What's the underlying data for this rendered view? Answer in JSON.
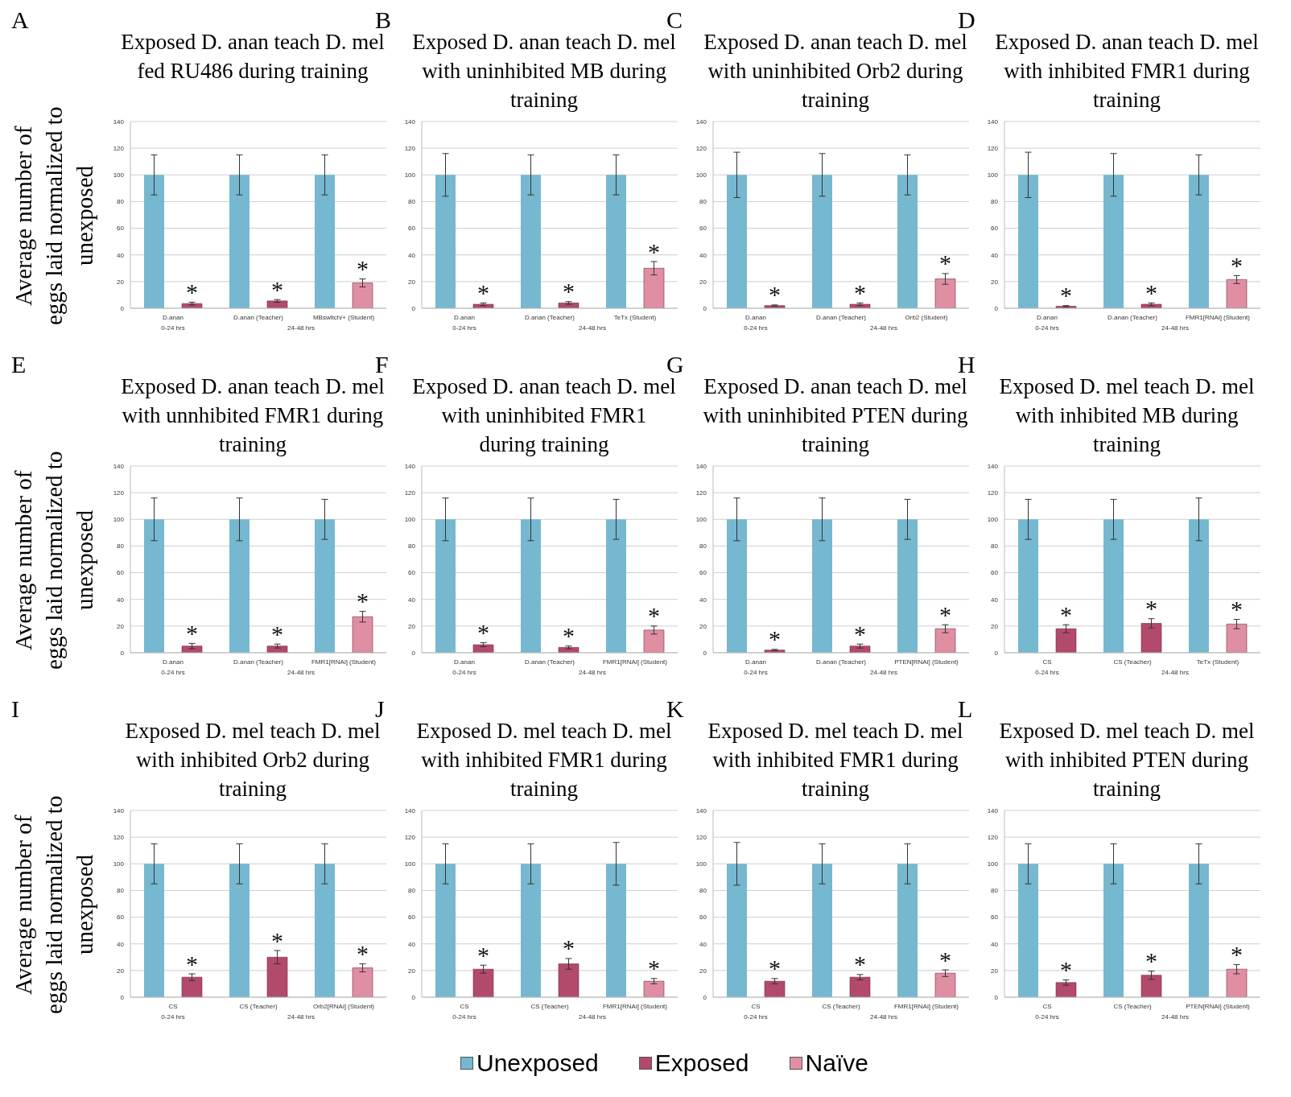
{
  "chart_data": [
    {
      "type": "bar",
      "title": "Exposed D. anan teach D. mel fed RU486 during training",
      "ylabel": "Average number of eggs laid normalized to unexposed",
      "categories": [
        "D.anan",
        "D.anan (Teacher)",
        "MBswitch/+ (Student)"
      ],
      "series": [
        {
          "color": "#75b8cf",
          "values": [
            100,
            100,
            100
          ],
          "errors": [
            15,
            15,
            15
          ]
        },
        {
          "color": "#b24a6b",
          "values": [
            3.5,
            5.5,
            null
          ],
          "errors": [
            1,
            1,
            null
          ]
        },
        {
          "color": "#e08fa3",
          "values": [
            null,
            null,
            19
          ],
          "errors": [
            null,
            null,
            3
          ]
        }
      ],
      "ylim": [
        0,
        140
      ],
      "yticks": [
        0,
        20,
        40,
        60,
        80,
        100,
        120,
        140
      ],
      "grid": "y",
      "annotations": [
        "A",
        "0-24 hrs",
        "24-48 hrs",
        "*",
        "*",
        "*"
      ]
    },
    {
      "type": "bar",
      "title": "Exposed D. anan teach D. mel with uninhibited MB during training",
      "categories": [
        "D.anan",
        "D.anan (Teacher)",
        "TeTx (Student)"
      ],
      "series": [
        {
          "color": "#75b8cf",
          "values": [
            100,
            100,
            100
          ],
          "errors": [
            16,
            15,
            15
          ]
        },
        {
          "color": "#b24a6b",
          "values": [
            3,
            4,
            null
          ],
          "errors": [
            1,
            1,
            null
          ]
        },
        {
          "color": "#e08fa3",
          "values": [
            null,
            null,
            30
          ],
          "errors": [
            null,
            null,
            5
          ]
        }
      ],
      "ylim": [
        0,
        140
      ],
      "yticks": [
        0,
        20,
        40,
        60,
        80,
        100,
        120,
        140
      ],
      "grid": "y",
      "annotations": [
        "B",
        "0-24 hrs",
        "24-48 hrs",
        "*",
        "*",
        "*"
      ]
    },
    {
      "type": "bar",
      "title": "Exposed D. anan teach D. mel with uninhibited Orb2 during training",
      "categories": [
        "D.anan",
        "D.anan (Teacher)",
        "Orb2 (Student)"
      ],
      "series": [
        {
          "color": "#75b8cf",
          "values": [
            100,
            100,
            100
          ],
          "errors": [
            17,
            16,
            15
          ]
        },
        {
          "color": "#b24a6b",
          "values": [
            2,
            3,
            null
          ],
          "errors": [
            0.5,
            1,
            null
          ]
        },
        {
          "color": "#e08fa3",
          "values": [
            null,
            null,
            22
          ],
          "errors": [
            null,
            null,
            4
          ]
        }
      ],
      "ylim": [
        0,
        140
      ],
      "yticks": [
        0,
        20,
        40,
        60,
        80,
        100,
        120,
        140
      ],
      "grid": "y",
      "annotations": [
        "C",
        "0-24 hrs",
        "24-48 hrs",
        "*",
        "*",
        "*"
      ]
    },
    {
      "type": "bar",
      "title": "Exposed D. anan teach D. mel with inhibited FMR1 during training",
      "categories": [
        "D.anan",
        "D.anan (Teacher)",
        "FMR1[RNAi] (Student)"
      ],
      "series": [
        {
          "color": "#75b8cf",
          "values": [
            100,
            100,
            100
          ],
          "errors": [
            17,
            16,
            15
          ]
        },
        {
          "color": "#b24a6b",
          "values": [
            1.5,
            3,
            null
          ],
          "errors": [
            0.5,
            1,
            null
          ]
        },
        {
          "color": "#e08fa3",
          "values": [
            null,
            null,
            21.5
          ],
          "errors": [
            null,
            null,
            3
          ]
        }
      ],
      "ylim": [
        0,
        140
      ],
      "yticks": [
        0,
        20,
        40,
        60,
        80,
        100,
        120,
        140
      ],
      "grid": "y",
      "annotations": [
        "D",
        "0-24 hrs",
        "24-48 hrs",
        "*",
        "*",
        "*"
      ]
    },
    {
      "type": "bar",
      "title": "Exposed D. anan teach D. mel with unnhibited FMR1 during training",
      "ylabel": "Average number of eggs laid normalized to unexposed",
      "categories": [
        "D.anan",
        "D.anan (Teacher)",
        "FMR1[RNAi] (Student)"
      ],
      "series": [
        {
          "color": "#75b8cf",
          "values": [
            100,
            100,
            100
          ],
          "errors": [
            16,
            16,
            15
          ]
        },
        {
          "color": "#b24a6b",
          "values": [
            5,
            5,
            null
          ],
          "errors": [
            2,
            1.5,
            null
          ]
        },
        {
          "color": "#e08fa3",
          "values": [
            null,
            null,
            27
          ],
          "errors": [
            null,
            null,
            4
          ]
        }
      ],
      "ylim": [
        0,
        140
      ],
      "yticks": [
        0,
        20,
        40,
        60,
        80,
        100,
        120,
        140
      ],
      "grid": "y",
      "annotations": [
        "E",
        "0-24 hrs",
        "24-48 hrs",
        "*",
        "*",
        "*"
      ]
    },
    {
      "type": "bar",
      "title": "Exposed D. anan teach D. mel with uninhibited FMR1 during training",
      "categories": [
        "D.anan",
        "D.anan (Teacher)",
        "FMR1[RNAi] (Student)"
      ],
      "series": [
        {
          "color": "#75b8cf",
          "values": [
            100,
            100,
            100
          ],
          "errors": [
            16,
            16,
            15
          ]
        },
        {
          "color": "#b24a6b",
          "values": [
            6,
            4,
            null
          ],
          "errors": [
            1.5,
            1,
            null
          ]
        },
        {
          "color": "#e08fa3",
          "values": [
            null,
            null,
            17
          ],
          "errors": [
            null,
            null,
            3
          ]
        }
      ],
      "ylim": [
        0,
        140
      ],
      "yticks": [
        0,
        20,
        40,
        60,
        80,
        100,
        120,
        140
      ],
      "grid": "y",
      "annotations": [
        "F",
        "0-24 hrs",
        "24-48 hrs",
        "*",
        "*",
        "*"
      ]
    },
    {
      "type": "bar",
      "title": "Exposed D. anan teach D. mel with uninhibited PTEN during training",
      "categories": [
        "D.anan",
        "D.anan (Teacher)",
        "PTEN[RNAi] (Student)"
      ],
      "series": [
        {
          "color": "#75b8cf",
          "values": [
            100,
            100,
            100
          ],
          "errors": [
            16,
            16,
            15
          ]
        },
        {
          "color": "#b24a6b",
          "values": [
            2,
            5,
            null
          ],
          "errors": [
            0.5,
            1.5,
            null
          ]
        },
        {
          "color": "#e08fa3",
          "values": [
            null,
            null,
            18
          ],
          "errors": [
            null,
            null,
            3
          ]
        }
      ],
      "ylim": [
        0,
        140
      ],
      "yticks": [
        0,
        20,
        40,
        60,
        80,
        100,
        120,
        140
      ],
      "grid": "y",
      "annotations": [
        "G",
        "0-24 hrs",
        "24-48 hrs",
        "*",
        "*",
        "*"
      ]
    },
    {
      "type": "bar",
      "title": "Exposed D. mel teach D. mel with inhibited MB during training",
      "categories": [
        "CS",
        "CS (Teacher)",
        "TeTx (Student)"
      ],
      "series": [
        {
          "color": "#75b8cf",
          "values": [
            100,
            100,
            100
          ],
          "errors": [
            15,
            15,
            16
          ]
        },
        {
          "color": "#b24a6b",
          "values": [
            18,
            22,
            null
          ],
          "errors": [
            3,
            3.5,
            null
          ]
        },
        {
          "color": "#e08fa3",
          "values": [
            null,
            null,
            21.5
          ],
          "errors": [
            null,
            null,
            3.5
          ]
        }
      ],
      "ylim": [
        0,
        140
      ],
      "yticks": [
        0,
        20,
        40,
        60,
        80,
        100,
        120,
        140
      ],
      "grid": "y",
      "annotations": [
        "H",
        "0-24 hrs",
        "24-48 hrs",
        "*",
        "*",
        "*"
      ]
    },
    {
      "type": "bar",
      "title": "Exposed D. mel teach D. mel with inhibited Orb2 during training",
      "ylabel": "Average number of eggs laid normalized to unexposed",
      "categories": [
        "CS",
        "CS (Teacher)",
        "Orb2[RNAi] (Student)"
      ],
      "series": [
        {
          "color": "#75b8cf",
          "values": [
            100,
            100,
            100
          ],
          "errors": [
            15,
            15,
            15
          ]
        },
        {
          "color": "#b24a6b",
          "values": [
            15,
            30,
            null
          ],
          "errors": [
            2.5,
            5,
            null
          ]
        },
        {
          "color": "#e08fa3",
          "values": [
            null,
            null,
            22
          ],
          "errors": [
            null,
            null,
            3
          ]
        }
      ],
      "ylim": [
        0,
        140
      ],
      "yticks": [
        0,
        20,
        40,
        60,
        80,
        100,
        120,
        140
      ],
      "grid": "y",
      "annotations": [
        "I",
        "0-24 hrs",
        "24-48 hrs",
        "*",
        "*",
        "*"
      ]
    },
    {
      "type": "bar",
      "title": "Exposed D. mel teach D. mel with inhibited FMR1 during training",
      "categories": [
        "CS",
        "CS (Teacher)",
        "FMR1[RNAi] (Student)"
      ],
      "series": [
        {
          "color": "#75b8cf",
          "values": [
            100,
            100,
            100
          ],
          "errors": [
            15,
            15,
            16
          ]
        },
        {
          "color": "#b24a6b",
          "values": [
            21,
            25,
            null
          ],
          "errors": [
            3,
            4,
            null
          ]
        },
        {
          "color": "#e08fa3",
          "values": [
            null,
            null,
            12
          ],
          "errors": [
            null,
            null,
            2
          ]
        }
      ],
      "ylim": [
        0,
        140
      ],
      "yticks": [
        0,
        20,
        40,
        60,
        80,
        100,
        120,
        140
      ],
      "grid": "y",
      "annotations": [
        "J",
        "0-24 hrs",
        "24-48 hrs",
        "*",
        "*",
        "*"
      ]
    },
    {
      "type": "bar",
      "title": "Exposed D. mel teach D. mel with inhibited FMR1 during training",
      "categories": [
        "CS",
        "CS (Teacher)",
        "FMR1[RNAi] (Student)"
      ],
      "series": [
        {
          "color": "#75b8cf",
          "values": [
            100,
            100,
            100
          ],
          "errors": [
            16,
            15,
            15
          ]
        },
        {
          "color": "#b24a6b",
          "values": [
            12,
            15,
            null
          ],
          "errors": [
            2,
            2,
            null
          ]
        },
        {
          "color": "#e08fa3",
          "values": [
            null,
            null,
            18
          ],
          "errors": [
            null,
            null,
            2.5
          ]
        }
      ],
      "ylim": [
        0,
        140
      ],
      "yticks": [
        0,
        20,
        40,
        60,
        80,
        100,
        120,
        140
      ],
      "grid": "y",
      "annotations": [
        "K",
        "0-24 hrs",
        "24-48 hrs",
        "*",
        "*",
        "*"
      ]
    },
    {
      "type": "bar",
      "title": "Exposed D. mel teach D. mel with inhibited PTEN during training",
      "categories": [
        "CS",
        "CS (Teacher)",
        "PTEN[RNAi] (Student)"
      ],
      "series": [
        {
          "name": "Unexposed",
          "color": "#75b8cf",
          "values": [
            100,
            100,
            100
          ],
          "errors": [
            15,
            15,
            15
          ]
        },
        {
          "name": "Exposed",
          "color": "#b24a6b",
          "values": [
            11,
            16.5,
            null
          ],
          "errors": [
            2,
            3,
            null
          ]
        },
        {
          "name": "Naïve",
          "color": "#e08fa3",
          "values": [
            null,
            null,
            21
          ],
          "errors": [
            null,
            null,
            3.5
          ]
        }
      ],
      "ylim": [
        0,
        140
      ],
      "yticks": [
        0,
        20,
        40,
        60,
        80,
        100,
        120,
        140
      ],
      "grid": "y",
      "legend": "bottom",
      "annotations": [
        "L",
        "0-24 hrs",
        "24-48 hrs",
        "*",
        "*",
        "*"
      ]
    }
  ]
}
